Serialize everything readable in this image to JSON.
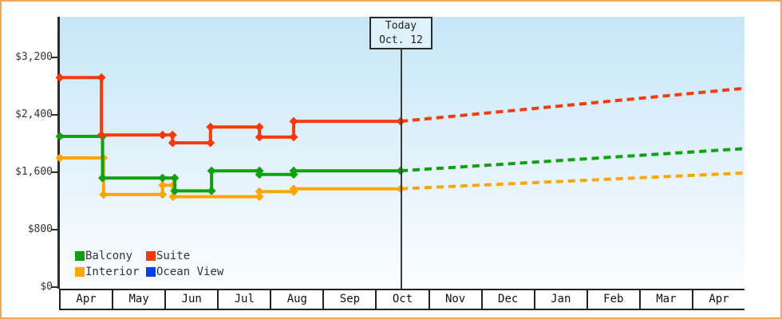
{
  "chart_data": {
    "type": "line",
    "title": "",
    "x_axis": {
      "months": [
        "Apr",
        "May",
        "Jun",
        "Jul",
        "Aug",
        "Sep",
        "Oct",
        "Nov",
        "Dec",
        "Jan",
        "Feb",
        "Mar",
        "Apr"
      ],
      "range_months": 13,
      "gridlines": false
    },
    "y_axis": {
      "tick_labels": [
        "$3,200",
        "$2,400",
        "$1,600",
        "$800",
        "$0"
      ],
      "tick_values": [
        3200,
        2400,
        1600,
        800,
        0
      ],
      "unit": "USD",
      "gridlines": false
    },
    "today": {
      "label": "Today",
      "date": "Oct. 12",
      "month_position": 6.47
    },
    "series": [
      {
        "name": "Balcony",
        "color": "#10a010",
        "points": [
          [
            0,
            2100
          ],
          [
            0.81,
            2100
          ],
          [
            0.81,
            1520
          ],
          [
            1.95,
            1520
          ],
          [
            2.18,
            1520
          ],
          [
            2.18,
            1340
          ],
          [
            2.88,
            1340
          ],
          [
            2.88,
            1620
          ],
          [
            3.79,
            1620
          ],
          [
            3.79,
            1570
          ],
          [
            4.44,
            1570
          ],
          [
            4.44,
            1620
          ],
          [
            6.47,
            1620
          ]
        ],
        "forecast": [
          [
            6.47,
            1620
          ],
          [
            13,
            1930
          ]
        ]
      },
      {
        "name": "Suite",
        "color": "#f53b0c",
        "points": [
          [
            0,
            2920
          ],
          [
            0.79,
            2920
          ],
          [
            0.79,
            2120
          ],
          [
            1.95,
            2120
          ],
          [
            2.14,
            2120
          ],
          [
            2.14,
            2010
          ],
          [
            2.86,
            2010
          ],
          [
            2.86,
            2230
          ],
          [
            3.79,
            2230
          ],
          [
            3.79,
            2090
          ],
          [
            4.44,
            2090
          ],
          [
            4.44,
            2310
          ],
          [
            6.47,
            2310
          ]
        ],
        "forecast": [
          [
            6.47,
            2310
          ],
          [
            13,
            2770
          ]
        ]
      },
      {
        "name": "Interior",
        "color": "#ffa507",
        "points": [
          [
            0,
            1800
          ],
          [
            0.83,
            1800
          ],
          [
            0.83,
            1290
          ],
          [
            1.95,
            1290
          ],
          [
            1.95,
            1420
          ],
          [
            2.15,
            1420
          ],
          [
            2.15,
            1260
          ],
          [
            3.79,
            1260
          ],
          [
            3.79,
            1330
          ],
          [
            4.44,
            1330
          ],
          [
            4.44,
            1370
          ],
          [
            6.47,
            1370
          ]
        ],
        "forecast": [
          [
            6.47,
            1370
          ],
          [
            13,
            1590
          ]
        ]
      },
      {
        "name": "Ocean View",
        "color": "#0442f0",
        "points": [],
        "forecast": []
      }
    ],
    "legend": [
      {
        "label": "Balcony",
        "color": "#10a010"
      },
      {
        "label": "Suite",
        "color": "#f53b0c"
      },
      {
        "label": "Interior",
        "color": "#ffa507"
      },
      {
        "label": "Ocean View",
        "color": "#0442f0"
      }
    ],
    "legend_position": "bottom-left-inside"
  },
  "today": {
    "line1": "Today",
    "line2": "Oct. 12"
  },
  "colors": {
    "frame_border": "#f0a85c",
    "plot_top": "#c6e6f7",
    "plot_bottom": "#fbfdff",
    "axis": "#2b2b2b",
    "label_text": "#333333"
  }
}
